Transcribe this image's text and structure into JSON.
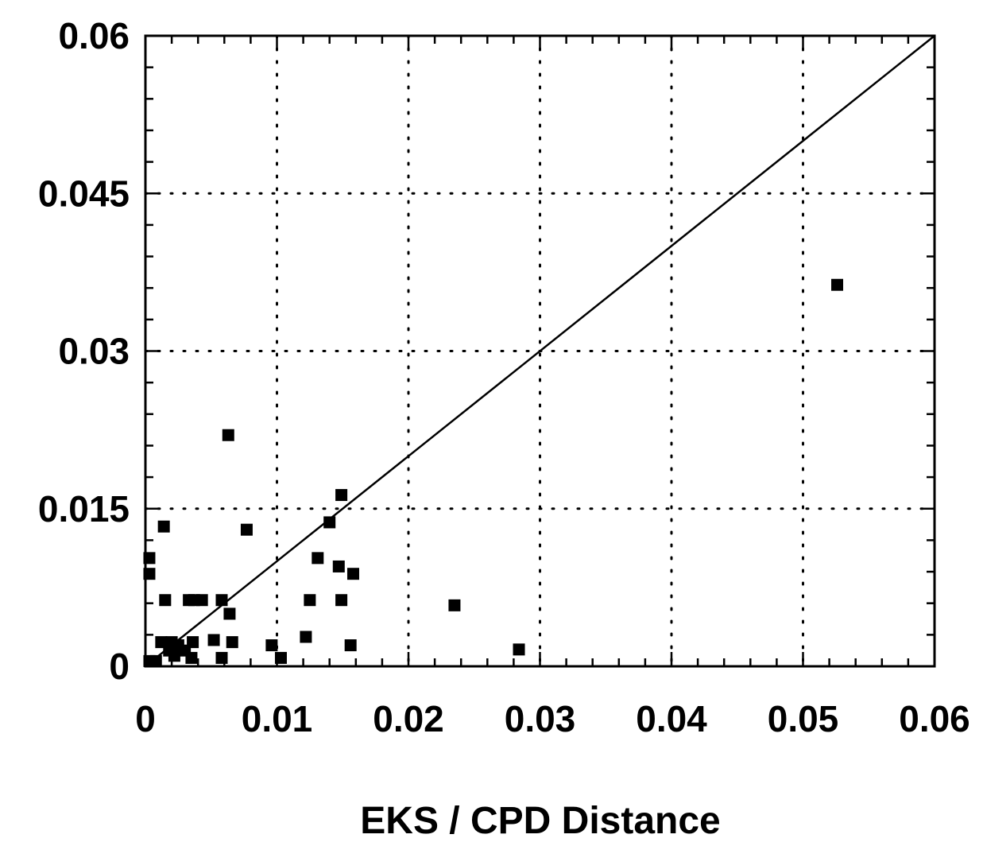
{
  "chart_data": {
    "type": "scatter",
    "xlabel": "EKS / CPD Distance",
    "ylabel": "",
    "xlim": [
      0,
      0.06
    ],
    "ylim": [
      0,
      0.06
    ],
    "x_ticks": [
      0,
      0.01,
      0.02,
      0.03,
      0.04,
      0.05,
      0.06
    ],
    "x_tick_labels": [
      "0",
      "0.01",
      "0.02",
      "0.03",
      "0.04",
      "0.05",
      "0.06"
    ],
    "y_ticks": [
      0,
      0.015,
      0.03,
      0.045,
      0.06
    ],
    "y_tick_labels": [
      "0",
      "0.015",
      "0.03",
      "0.045",
      "0.06"
    ],
    "grid": true,
    "reference_line": {
      "from": [
        0,
        0
      ],
      "to": [
        0.06,
        0.06
      ]
    },
    "series": [
      {
        "points": [
          [
            0.0003,
            0.0103
          ],
          [
            0.0003,
            0.0088
          ],
          [
            0.0003,
            0.0005
          ],
          [
            0.0008,
            0.0005
          ],
          [
            0.0012,
            0.0023
          ],
          [
            0.0014,
            0.0133
          ],
          [
            0.0015,
            0.0063
          ],
          [
            0.0018,
            0.0015
          ],
          [
            0.002,
            0.0023
          ],
          [
            0.0022,
            0.001
          ],
          [
            0.0025,
            0.002
          ],
          [
            0.003,
            0.0015
          ],
          [
            0.0033,
            0.0063
          ],
          [
            0.0035,
            0.0008
          ],
          [
            0.0036,
            0.0023
          ],
          [
            0.0037,
            0.0063
          ],
          [
            0.0043,
            0.0063
          ],
          [
            0.0052,
            0.0025
          ],
          [
            0.0058,
            0.0063
          ],
          [
            0.0058,
            0.0008
          ],
          [
            0.0063,
            0.022
          ],
          [
            0.0064,
            0.005
          ],
          [
            0.0066,
            0.0023
          ],
          [
            0.0077,
            0.013
          ],
          [
            0.0096,
            0.002
          ],
          [
            0.0103,
            0.0008
          ],
          [
            0.0122,
            0.0028
          ],
          [
            0.0125,
            0.0063
          ],
          [
            0.0131,
            0.0103
          ],
          [
            0.014,
            0.0137
          ],
          [
            0.0147,
            0.0095
          ],
          [
            0.0149,
            0.0063
          ],
          [
            0.0149,
            0.0163
          ],
          [
            0.0156,
            0.002
          ],
          [
            0.0158,
            0.0088
          ],
          [
            0.0235,
            0.0058
          ],
          [
            0.0284,
            0.0016
          ],
          [
            0.0526,
            0.0363
          ]
        ]
      }
    ]
  }
}
